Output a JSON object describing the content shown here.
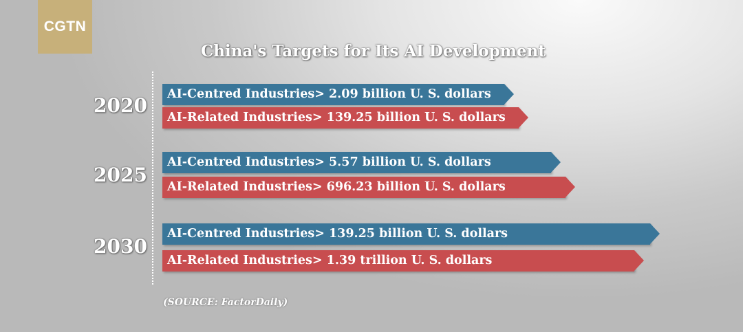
{
  "logo": "CGTN",
  "source": "(SOURCE:  FactorDaily)",
  "chart_data": {
    "type": "bar",
    "orientation": "horizontal",
    "title": "China's Targets for Its AI Development",
    "categories": [
      "2020",
      "2025",
      "2030"
    ],
    "series": [
      {
        "name": "AI-Centred Industries",
        "values": [
          2.09,
          5.57,
          139.25
        ],
        "labels": [
          "AI-Centred Industries> 2.09 billion U. S. dollars",
          "AI-Centred Industries> 5.57 billion U. S. dollars",
          "AI-Centred Industries> 139.25 billion U. S. dollars"
        ]
      },
      {
        "name": "AI-Related Industries",
        "values": [
          139.25,
          696.23,
          1390
        ],
        "labels": [
          "AI-Related Industries> 139.25 billion U. S. dollars",
          "AI-Related Industries> 696.23 billion U. S. dollars",
          "AI-Related Industries> 1.39 trillion U. S. dollars"
        ]
      }
    ],
    "unit": "billion U. S. dollars",
    "colors": {
      "AI-Centred Industries": "#3a7699",
      "AI-Related Industries": "#c84d4f"
    },
    "grid": false,
    "legend": "none"
  }
}
